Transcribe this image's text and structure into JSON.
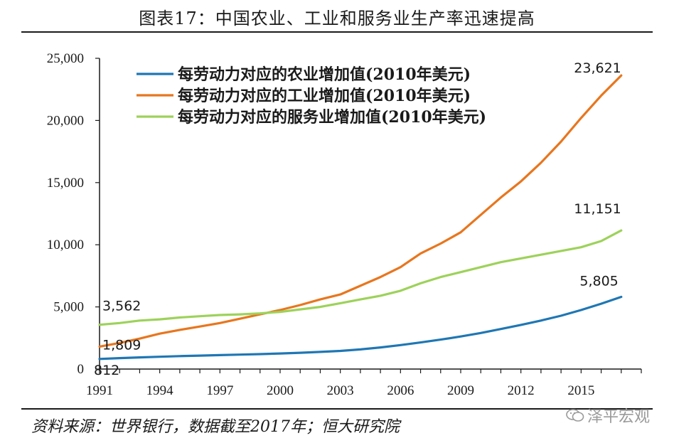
{
  "header": {
    "title": "图表17：中国农业、工业和服务业生产率迅速提高"
  },
  "footer": {
    "source": "资料来源：世界银行，数据截至2017年；恒大研究院",
    "watermark": "泽平宏观"
  },
  "colors": {
    "agriculture": "#1f77b4",
    "industry": "#e8761e",
    "services": "#9dd25a",
    "axis": "#1a1a1a"
  },
  "chart_data": {
    "type": "line",
    "title": "图表17：中国农业、工业和服务业生产率迅速提高",
    "xlabel": "",
    "ylabel": "",
    "xlim": [
      1991,
      2017
    ],
    "ylim": [
      0,
      25000
    ],
    "x_ticks": [
      1991,
      1994,
      1997,
      2000,
      2003,
      2006,
      2009,
      2012,
      2015
    ],
    "x_tick_labels": [
      "1991",
      "1994",
      "1997",
      "2000",
      "2003",
      "2006",
      "2009",
      "2012",
      "2015"
    ],
    "y_ticks": [
      0,
      5000,
      10000,
      15000,
      20000,
      25000
    ],
    "y_tick_labels": [
      "0",
      "5,000",
      "10,000",
      "15,000",
      "20,000",
      "25,000"
    ],
    "grid": false,
    "legend_position": "top-left",
    "x": [
      1991,
      1992,
      1993,
      1994,
      1995,
      1996,
      1997,
      1998,
      1999,
      2000,
      2001,
      2002,
      2003,
      2004,
      2005,
      2006,
      2007,
      2008,
      2009,
      2010,
      2011,
      2012,
      2013,
      2014,
      2015,
      2016,
      2017
    ],
    "series": [
      {
        "name": "每劳动力对应的农业增加值(2010年美元)",
        "color_key": "agriculture",
        "values": [
          812,
          880,
          940,
          990,
          1040,
          1080,
          1120,
          1160,
          1200,
          1250,
          1310,
          1380,
          1460,
          1580,
          1740,
          1930,
          2140,
          2370,
          2620,
          2900,
          3220,
          3550,
          3900,
          4290,
          4750,
          5260,
          5805
        ]
      },
      {
        "name": "每劳动力对应的工业增加值(2010年美元)",
        "color_key": "industry",
        "values": [
          1809,
          2100,
          2450,
          2850,
          3150,
          3420,
          3700,
          4050,
          4400,
          4750,
          5150,
          5600,
          6000,
          6700,
          7400,
          8200,
          9300,
          10100,
          11000,
          12400,
          13800,
          15100,
          16600,
          18300,
          20200,
          22000,
          23621
        ]
      },
      {
        "name": "每劳动力对应的服务业增加值(2010年美元)",
        "color_key": "services",
        "values": [
          3562,
          3700,
          3900,
          4000,
          4150,
          4250,
          4350,
          4400,
          4480,
          4600,
          4800,
          5000,
          5300,
          5600,
          5900,
          6300,
          6900,
          7400,
          7800,
          8200,
          8600,
          8900,
          9200,
          9500,
          9800,
          10300,
          11151
        ]
      }
    ],
    "data_labels": [
      {
        "series": 0,
        "point": "first",
        "text": "812"
      },
      {
        "series": 0,
        "point": "last",
        "text": "5,805"
      },
      {
        "series": 1,
        "point": "first",
        "text": "1,809"
      },
      {
        "series": 1,
        "point": "last",
        "text": "23,621"
      },
      {
        "series": 2,
        "point": "first",
        "text": "3,562"
      },
      {
        "series": 2,
        "point": "last",
        "text": "11,151"
      }
    ]
  }
}
